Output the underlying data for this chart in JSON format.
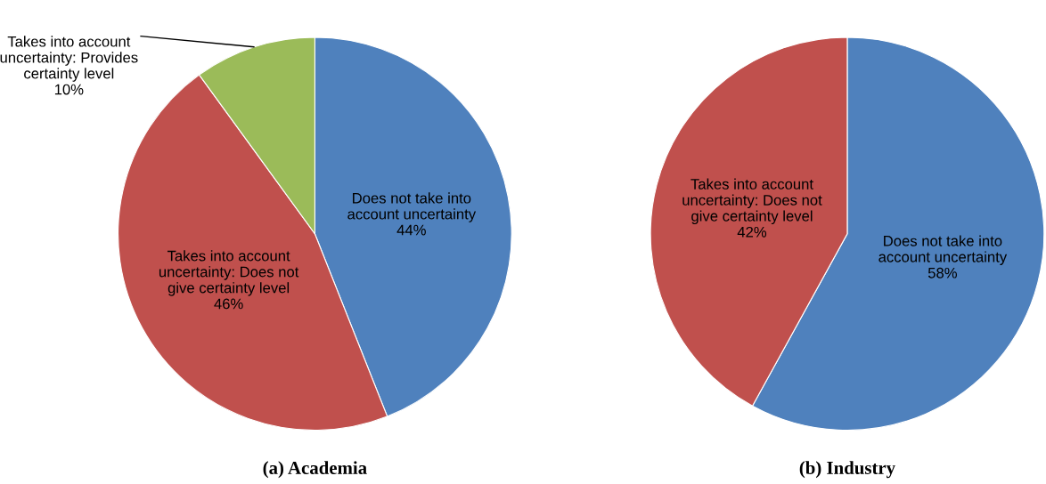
{
  "chart_data": [
    {
      "type": "pie",
      "title": "(a) Academia",
      "categories": [
        "Does not take into account uncertainty",
        "Takes into account uncertainty: Does not give certainty level",
        "Takes into account uncertainty: Provides certainty level"
      ],
      "values": [
        44,
        46,
        10
      ],
      "value_labels": [
        "44%",
        "46%",
        "10%"
      ],
      "colors": [
        "#4f81bd",
        "#c0504d",
        "#9bbb59"
      ]
    },
    {
      "type": "pie",
      "title": "(b) Industry",
      "categories": [
        "Does not take into account uncertainty",
        "Takes into account uncertainty: Does not give certainty level"
      ],
      "values": [
        58,
        42
      ],
      "value_labels": [
        "58%",
        "42%"
      ],
      "colors": [
        "#4f81bd",
        "#c0504d"
      ]
    }
  ]
}
